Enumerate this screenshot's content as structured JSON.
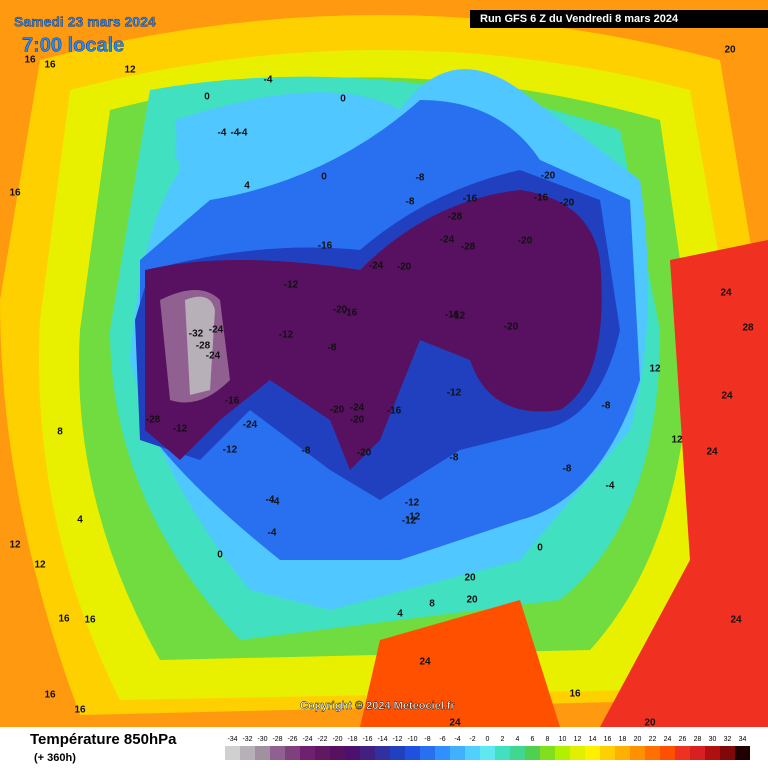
{
  "header": {
    "date": "Samedi 23 mars 2024",
    "time": "7:00 locale",
    "run": "Run GFS 6 Z du Vendredi 8 mars 2024"
  },
  "copyright": "Copyright © 2024 Meteociel.fr",
  "footer": {
    "title": "Température 850hPa",
    "lead": "(+ 360h)"
  },
  "legend": {
    "ticks": [
      -34,
      -32,
      -30,
      -28,
      -26,
      -24,
      -22,
      -20,
      -18,
      -16,
      -14,
      -12,
      -10,
      -8,
      -6,
      -4,
      -2,
      0,
      2,
      4,
      6,
      8,
      10,
      12,
      14,
      16,
      18,
      20,
      22,
      24,
      26,
      28,
      30,
      32,
      34
    ],
    "colors": [
      "#d0d0d0",
      "#b8b0b8",
      "#a090a0",
      "#906090",
      "#804080",
      "#702070",
      "#601860",
      "#581060",
      "#4c1070",
      "#402080",
      "#3030a0",
      "#2040c0",
      "#2050e0",
      "#2870f0",
      "#3090ff",
      "#40b0ff",
      "#50d0ff",
      "#60e8f0",
      "#40e0c0",
      "#40d890",
      "#50d050",
      "#80e020",
      "#b0f000",
      "#e0f000",
      "#fff000",
      "#ffd000",
      "#ffb000",
      "#ff9000",
      "#ff7000",
      "#ff5000",
      "#f03020",
      "#d82020",
      "#b01010",
      "#800808",
      "#200000"
    ]
  },
  "map_labels": [
    20,
    16,
    16,
    12,
    -4,
    -4,
    0,
    -4,
    -4,
    0,
    0,
    4,
    -8,
    -8,
    -16,
    -20,
    -16,
    -20,
    -28,
    -28,
    -24,
    -20,
    -16,
    -20,
    -24,
    -20,
    -12,
    -12,
    -20,
    -16,
    -12,
    -32,
    -24,
    -28,
    -24,
    -28,
    -12,
    -12,
    -16,
    -8,
    -20,
    -24,
    -16,
    -20,
    -16,
    -12,
    -8,
    -8,
    -12,
    -12,
    -4,
    -4,
    0,
    4,
    8,
    12,
    12,
    16,
    20,
    24,
    24,
    28,
    24,
    24,
    24,
    16,
    12,
    12,
    16,
    16,
    16,
    20,
    20,
    24,
    16,
    8,
    4,
    0,
    -4,
    -8,
    -12,
    -24,
    -20,
    -8,
    -4
  ]
}
